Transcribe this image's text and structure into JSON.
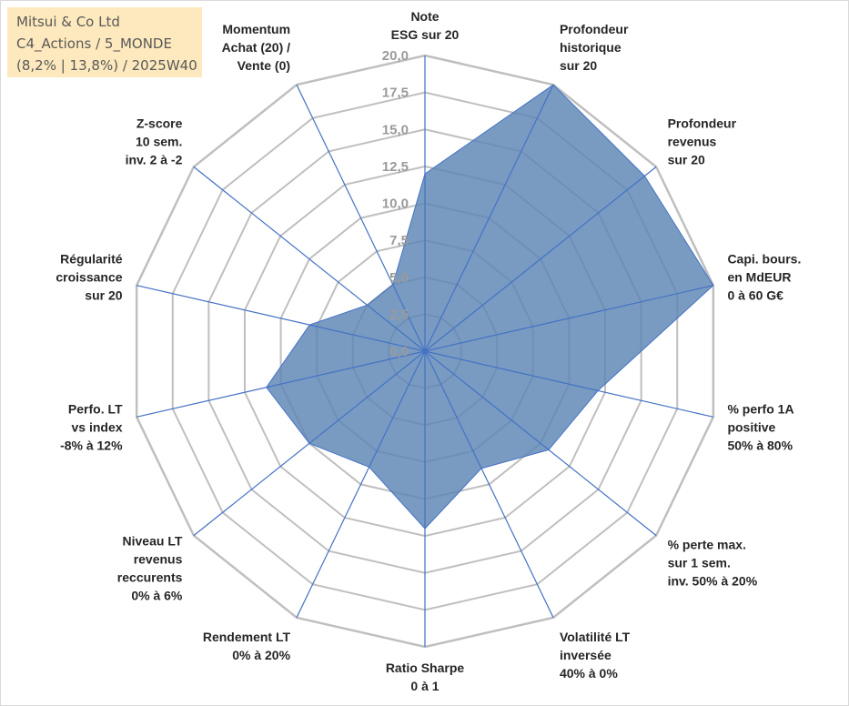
{
  "header": {
    "line1": "Mitsui & Co Ltd",
    "line2": "C4_Actions / 5_MONDE",
    "line3": "(8,2% | 13,8%) / 2025W40"
  },
  "colors": {
    "area_fill": "#5b85b5",
    "area_stroke": "#4472c4",
    "spoke": "#4472c4",
    "grid": "#bfbfbf"
  },
  "chart_data": {
    "type": "radar",
    "rmin": 0,
    "rmax": 20,
    "ticks": [
      "0,0",
      "2,5",
      "5,0",
      "7,5",
      "10,0",
      "12,5",
      "15,0",
      "17,5",
      "20,0"
    ],
    "axes": [
      {
        "label": [
          "Note",
          "ESG sur 20"
        ],
        "value": 12
      },
      {
        "label": [
          "Profondeur",
          "historique",
          "sur 20"
        ],
        "value": 20
      },
      {
        "label": [
          "Profondeur",
          "revenus",
          "sur 20"
        ],
        "value": 19
      },
      {
        "label": [
          "Capi. bours.",
          "en MdEUR",
          "0 à 60 G€"
        ],
        "value": 20
      },
      {
        "label": [
          "% perfo 1A",
          "positive",
          "50% à 80%"
        ],
        "value": 12
      },
      {
        "label": [
          "% perte max.",
          "sur 1 sem.",
          "inv. 50% à 20%"
        ],
        "value": 10.7
      },
      {
        "label": [
          "Volatilité LT",
          "inversée",
          "40% à 0%"
        ],
        "value": 8.8
      },
      {
        "label": [
          "Ratio Sharpe",
          "0 à 1"
        ],
        "value": 12
      },
      {
        "label": [
          "Rendement LT",
          "0% à 20%"
        ],
        "value": 8.7
      },
      {
        "label": [
          "Niveau LT",
          "revenus",
          "reccurents",
          "0% à 6%"
        ],
        "value": 10
      },
      {
        "label": [
          "Perfo. LT",
          "vs index",
          "-8% à 12%"
        ],
        "value": 11
      },
      {
        "label": [
          "Régularité",
          "croissance",
          "sur 20"
        ],
        "value": 8
      },
      {
        "label": [
          "Z-score",
          "10 sem.",
          "inv. 2 à -2"
        ],
        "value": 5
      },
      {
        "label": [
          "Momentum",
          "Achat (20) /",
          "Vente (0)"
        ],
        "value": 5
      }
    ]
  }
}
